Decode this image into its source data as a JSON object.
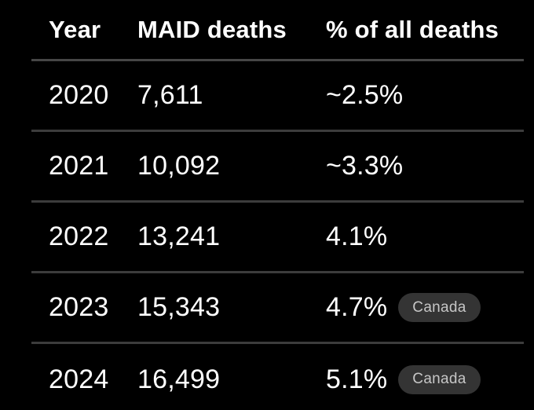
{
  "colors": {
    "background": "#000000",
    "text": "#ffffff",
    "separator": "#3c3c3c",
    "header_separator": "#464646",
    "badge_background": "#343434",
    "badge_text": "#c6c6c6"
  },
  "chart_data": {
    "type": "table",
    "columns": [
      "Year",
      "MAID deaths",
      "% of all deaths"
    ],
    "rows": [
      {
        "year": "2020",
        "deaths": "7,611",
        "pct": "~2.5%",
        "badge": ""
      },
      {
        "year": "2021",
        "deaths": "10,092",
        "pct": "~3.3%",
        "badge": ""
      },
      {
        "year": "2022",
        "deaths": "13,241",
        "pct": "4.1%",
        "badge": ""
      },
      {
        "year": "2023",
        "deaths": "15,343",
        "pct": "4.7%",
        "badge": "Canada"
      },
      {
        "year": "2024",
        "deaths": "16,499",
        "pct": "5.1%",
        "badge": "Canada"
      }
    ]
  }
}
